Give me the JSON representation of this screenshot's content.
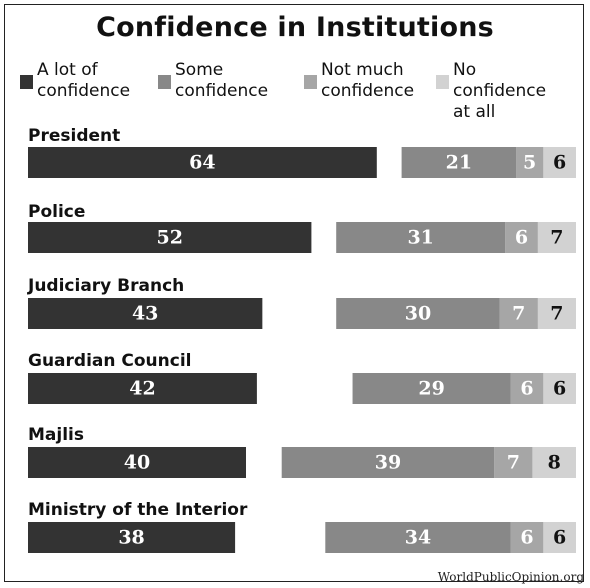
{
  "chart_data": {
    "type": "bar",
    "title": "Confidence in Institutions",
    "categories": [
      "President",
      "Police",
      "Judiciary Branch",
      "Guardian Council",
      "Majlis",
      "Ministry of the Interior"
    ],
    "series": [
      {
        "name": "A lot of\nconfidence",
        "color": "#333333",
        "values": [
          64,
          52,
          43,
          42,
          40,
          38
        ]
      },
      {
        "name": "Some\nconfidence",
        "color": "#888888",
        "values": [
          21,
          31,
          30,
          29,
          39,
          34
        ]
      },
      {
        "name": "Not much\nconfidence",
        "color": "#a6a6a6",
        "values": [
          5,
          6,
          7,
          6,
          7,
          6
        ]
      },
      {
        "name": "No confidence\nat all",
        "color": "#d2d2d2",
        "values": [
          6,
          7,
          7,
          6,
          8,
          6
        ]
      }
    ],
    "legend_position": "top",
    "grid": false
  },
  "source": "WorldPublicOpinion.org"
}
